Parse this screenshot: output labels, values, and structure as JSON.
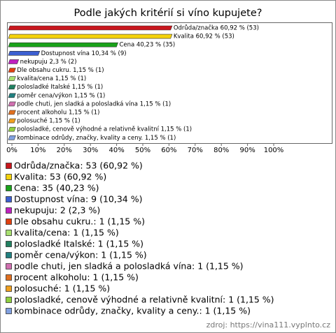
{
  "chart_data": {
    "type": "bar",
    "title": "Podle jakých kritérií si víno kupujete?",
    "values": [
      60.92,
      60.92,
      40.23,
      10.34,
      2.3,
      1.15,
      1.15,
      1.15,
      1.15,
      1.15,
      1.15,
      1.15,
      1.15,
      1.15
    ],
    "value_labels": [
      "Odrůda/značka 60,92 % (53)",
      "Kvalita 60,92 % (53)",
      "Cena 40,23 % (35)",
      "Dostupnost vína 10,34 % (9)",
      "nekupuju 2,3 % (2)",
      "Dle obsahu cukru. 1,15 % (1)",
      "kvalita/cena 1,15 % (1)",
      "polosladké Italské 1,15 % (1)",
      "poměr cena/výkon 1,15 % (1)",
      "podle chuti, jen sladká a polosladká vína 1,15 % (1)",
      "procent alkoholu 1,15 % (1)",
      "polosuché 1,15 % (1)",
      "polosladké, cenově výhodné a relativně kvalitní 1,15 % (1)",
      "kombinace odrůdy, značky, kvality a ceny. 1,15 % (1)"
    ],
    "colors": [
      "#c8161d",
      "#f4d20c",
      "#1aa31a",
      "#3c5fd1",
      "#c020c0",
      "#e04010",
      "#a8e070",
      "#208060",
      "#208080",
      "#d070b0",
      "#e07020",
      "#f0a020",
      "#90d040",
      "#80a0e0"
    ],
    "legend": [
      "Odrůda/značka: 53 (60,92 %)",
      "Kvalita: 53 (60,92 %)",
      "Cena: 35 (40,23 %)",
      "Dostupnost vína: 9 (10,34 %)",
      "nekupuju: 2 (2,3 %)",
      "Dle obsahu cukru.: 1 (1,15 %)",
      "kvalita/cena: 1 (1,15 %)",
      "polosladké Italské: 1 (1,15 %)",
      "poměr cena/výkon: 1 (1,15 %)",
      "podle chuti, jen sladká a polosladká vína: 1 (1,15 %)",
      "procent alkoholu: 1 (1,15 %)",
      "polosuché: 1 (1,15 %)",
      "polosladké, cenově výhodné a relativně kvalitní: 1 (1,15 %)",
      "kombinace odrůdy, značky, kvality a ceny.: 1 (1,15 %)"
    ],
    "xlim": [
      0,
      100
    ],
    "xticks": [
      {
        "value": 0,
        "label": "0%"
      },
      {
        "value": 10,
        "label": "10%"
      },
      {
        "value": 20,
        "label": "20%"
      },
      {
        "value": 30,
        "label": "30%"
      },
      {
        "value": 40,
        "label": "40%"
      },
      {
        "value": 50,
        "label": "50%"
      },
      {
        "value": 60,
        "label": "60%"
      },
      {
        "value": 70,
        "label": "70%"
      },
      {
        "value": 80,
        "label": "80%"
      },
      {
        "value": 90,
        "label": "90%"
      },
      {
        "value": 100,
        "label": "100%"
      }
    ],
    "source": "zdroj: https://vina111.vyplnto.cz"
  }
}
